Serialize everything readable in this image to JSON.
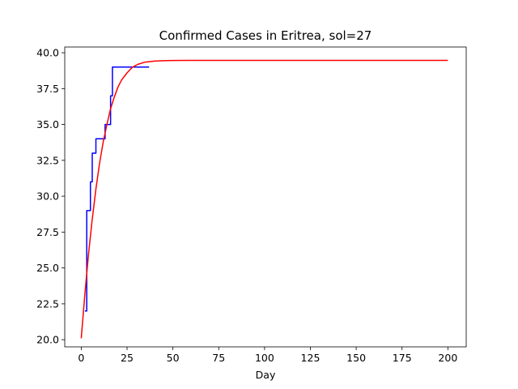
{
  "chart_data": {
    "type": "line",
    "title": "Confirmed Cases in Eritrea, sol=27",
    "xlabel": "Day",
    "ylabel": "",
    "xlim": [
      -9,
      210
    ],
    "ylim": [
      19.5,
      40.4
    ],
    "x_ticks": [
      0,
      25,
      50,
      75,
      100,
      125,
      150,
      175,
      200
    ],
    "y_ticks": [
      "20.0",
      "22.5",
      "25.0",
      "27.5",
      "30.0",
      "32.5",
      "35.0",
      "37.5",
      "40.0"
    ],
    "grid": false,
    "legend": "none",
    "series": [
      {
        "color": "#0000ff",
        "style": "step",
        "x": [
          2,
          3,
          3,
          5,
          5,
          6,
          6,
          8,
          8,
          10,
          10,
          13,
          13,
          16,
          16,
          17,
          17,
          37
        ],
        "y": [
          22,
          22,
          29,
          29,
          31,
          31,
          33,
          33,
          34,
          34,
          34,
          34,
          35,
          35,
          37,
          37,
          39,
          39
        ]
      },
      {
        "color": "#ff0000",
        "style": "smooth",
        "x": [
          0,
          2,
          4,
          6,
          8,
          10,
          12,
          14,
          16,
          18,
          20,
          22,
          25,
          28,
          31,
          35,
          40,
          45,
          50,
          60,
          70,
          80,
          100,
          125,
          150,
          175,
          200
        ],
        "y": [
          20.1,
          23.2,
          26.0,
          28.4,
          30.5,
          32.3,
          33.8,
          35.0,
          36.1,
          36.9,
          37.6,
          38.1,
          38.6,
          39.0,
          39.2,
          39.35,
          39.42,
          39.45,
          39.46,
          39.47,
          39.47,
          39.47,
          39.47,
          39.47,
          39.47,
          39.47,
          39.47
        ]
      }
    ]
  }
}
